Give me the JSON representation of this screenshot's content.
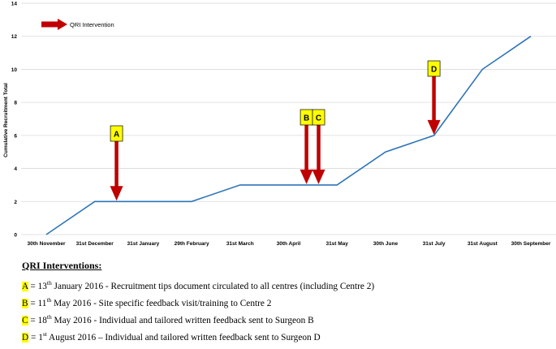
{
  "chart_data": {
    "type": "line",
    "title": "",
    "xlabel": "",
    "ylabel": "Cumulative Recruitment Total",
    "categories": [
      "30th November",
      "31st December",
      "31st January",
      "29th February",
      "31st March",
      "30th April",
      "31st May",
      "30th June",
      "31st July",
      "31st August",
      "30th September"
    ],
    "series": [
      {
        "values": [
          0,
          2,
          2,
          2,
          3,
          3,
          3,
          5,
          6,
          10,
          12
        ]
      }
    ],
    "ylim": [
      0,
      14
    ],
    "yticks": [
      0,
      2,
      4,
      6,
      8,
      10,
      12,
      14
    ],
    "grid": true,
    "line_color": "#2e75b6",
    "arrow_color": "#c00000",
    "box_color": "#ffff00",
    "legend": {
      "label": "QRI Intervention",
      "position": "top-left"
    },
    "annotations": [
      {
        "label": "A",
        "x_month": 1.45,
        "y": 2
      },
      {
        "label": "B",
        "x_month": 5.37,
        "y": 3
      },
      {
        "label": "C",
        "x_month": 5.62,
        "y": 3
      },
      {
        "label": "D",
        "x_month": 8.0,
        "y": 6
      }
    ]
  },
  "notes": {
    "title": "QRI Interventions:",
    "items": [
      {
        "letter": "A",
        "pre": " = 13",
        "sup": "th",
        "post": " January 2016 - Recruitment tips document circulated to all centres (including Centre 2)"
      },
      {
        "letter": "B",
        "pre": " = 11",
        "sup": "th",
        "post": " May 2016 - Site specific feedback visit/training to Centre 2"
      },
      {
        "letter": "C",
        "pre": " = 18",
        "sup": "th",
        "post": " May 2016 - Individual and tailored written feedback sent to Surgeon B"
      },
      {
        "letter": "D",
        "pre": " = 1",
        "sup": "st",
        "post": " August 2016 – Individual and tailored written feedback sent to Surgeon D"
      }
    ]
  }
}
